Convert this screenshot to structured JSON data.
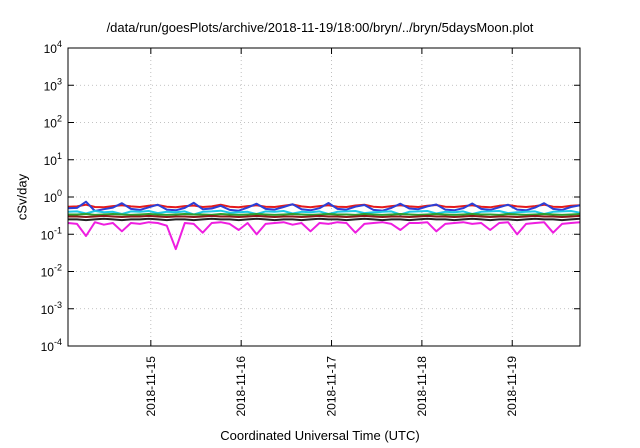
{
  "chart_data": {
    "type": "line",
    "title": "/data/run/goesPlots/archive/2018-11-19/18:00/bryn/../bryn/5daysMoon.plot",
    "xlabel": "Coordinated Universal Time (UTC)",
    "ylabel": "cSv/day",
    "yscale": "log",
    "ylim": [
      0.0001,
      10000
    ],
    "y_ticks": [
      {
        "value": 0.0001,
        "base": "10",
        "exp": "-4"
      },
      {
        "value": 0.001,
        "base": "10",
        "exp": "-3"
      },
      {
        "value": 0.01,
        "base": "10",
        "exp": "-2"
      },
      {
        "value": 0.1,
        "base": "10",
        "exp": "-1"
      },
      {
        "value": 1,
        "base": "10",
        "exp": "0"
      },
      {
        "value": 10,
        "base": "10",
        "exp": "1"
      },
      {
        "value": 100,
        "base": "10",
        "exp": "2"
      },
      {
        "value": 1000,
        "base": "10",
        "exp": "3"
      },
      {
        "value": 10000,
        "base": "10",
        "exp": "4"
      }
    ],
    "xlim": [
      "2018-11-14 02:00",
      "2018-11-19 18:00"
    ],
    "x_ticks": [
      "2018-11-15",
      "2018-11-16",
      "2018-11-17",
      "2018-11-18",
      "2018-11-19"
    ],
    "grid": true,
    "series": [
      {
        "color": "#e41a1c",
        "level": 0.55,
        "values": [
          0.55,
          0.56,
          0.62,
          0.54,
          0.53,
          0.57,
          0.6,
          0.56,
          0.54,
          0.58,
          0.61,
          0.55,
          0.53,
          0.57,
          0.59,
          0.54,
          0.56,
          0.62,
          0.55,
          0.53,
          0.57,
          0.6,
          0.55,
          0.54,
          0.58,
          0.63,
          0.56,
          0.53,
          0.57,
          0.6,
          0.55,
          0.54,
          0.59,
          0.62,
          0.55,
          0.53,
          0.57,
          0.6,
          0.56,
          0.54,
          0.58,
          0.61,
          0.55,
          0.54,
          0.57,
          0.6,
          0.55,
          0.53,
          0.58,
          0.61,
          0.56,
          0.54,
          0.57,
          0.62,
          0.55,
          0.54,
          0.58,
          0.6
        ]
      },
      {
        "color": "#2c3fd6",
        "level": 0.5,
        "values": [
          0.5,
          0.51,
          0.75,
          0.42,
          0.47,
          0.52,
          0.68,
          0.48,
          0.45,
          0.53,
          0.62,
          0.46,
          0.44,
          0.51,
          0.7,
          0.47,
          0.49,
          0.58,
          0.45,
          0.43,
          0.52,
          0.66,
          0.48,
          0.46,
          0.54,
          0.64,
          0.47,
          0.44,
          0.5,
          0.69,
          0.48,
          0.46,
          0.55,
          0.61,
          0.45,
          0.43,
          0.51,
          0.66,
          0.49,
          0.47,
          0.56,
          0.63,
          0.46,
          0.44,
          0.5,
          0.67,
          0.48,
          0.45,
          0.53,
          0.62,
          0.46,
          0.44,
          0.52,
          0.68,
          0.48,
          0.45,
          0.54,
          0.6
        ]
      },
      {
        "color": "#1ec8e8",
        "level": 0.4,
        "values": [
          0.4,
          0.41,
          0.36,
          0.42,
          0.39,
          0.4,
          0.35,
          0.41,
          0.4,
          0.42,
          0.37,
          0.4,
          0.39,
          0.41,
          0.34,
          0.4,
          0.41,
          0.43,
          0.38,
          0.39,
          0.4,
          0.35,
          0.41,
          0.4,
          0.42,
          0.36,
          0.4,
          0.39,
          0.41,
          0.35,
          0.4,
          0.41,
          0.42,
          0.37,
          0.39,
          0.4,
          0.41,
          0.34,
          0.4,
          0.41,
          0.42,
          0.36,
          0.4,
          0.39,
          0.41,
          0.35,
          0.4,
          0.41,
          0.42,
          0.37,
          0.39,
          0.4,
          0.41,
          0.35,
          0.4,
          0.41,
          0.42,
          0.38
        ]
      },
      {
        "color": "#2ca02c",
        "level": 0.34,
        "values": [
          0.34,
          0.34,
          0.35,
          0.33,
          0.34,
          0.35,
          0.34,
          0.33,
          0.34,
          0.35,
          0.34,
          0.33,
          0.34,
          0.35,
          0.34,
          0.34,
          0.33,
          0.35,
          0.34,
          0.33,
          0.34,
          0.35,
          0.34,
          0.33,
          0.34,
          0.35,
          0.34,
          0.33,
          0.34,
          0.35,
          0.34,
          0.34,
          0.33,
          0.35,
          0.34,
          0.33,
          0.34,
          0.35,
          0.34,
          0.33,
          0.34,
          0.35,
          0.34,
          0.33,
          0.34,
          0.35,
          0.34,
          0.34,
          0.33,
          0.35,
          0.34,
          0.33,
          0.34,
          0.35,
          0.34,
          0.33,
          0.34,
          0.35
        ]
      },
      {
        "color": "#8a1a1a",
        "level": 0.3,
        "values": [
          0.3,
          0.3,
          0.29,
          0.3,
          0.31,
          0.3,
          0.29,
          0.3,
          0.3,
          0.31,
          0.3,
          0.29,
          0.3,
          0.3,
          0.29,
          0.3,
          0.31,
          0.3,
          0.3,
          0.29,
          0.3,
          0.31,
          0.3,
          0.29,
          0.3,
          0.3,
          0.29,
          0.3,
          0.31,
          0.3,
          0.3,
          0.29,
          0.3,
          0.31,
          0.3,
          0.29,
          0.3,
          0.3,
          0.29,
          0.3,
          0.31,
          0.3,
          0.3,
          0.29,
          0.3,
          0.31,
          0.3,
          0.29,
          0.3,
          0.3,
          0.29,
          0.3,
          0.31,
          0.3,
          0.3,
          0.29,
          0.3,
          0.31
        ]
      },
      {
        "color": "#222222",
        "level": 0.25,
        "values": [
          0.25,
          0.25,
          0.24,
          0.25,
          0.26,
          0.25,
          0.24,
          0.25,
          0.25,
          0.26,
          0.25,
          0.24,
          0.25,
          0.25,
          0.24,
          0.25,
          0.26,
          0.25,
          0.25,
          0.24,
          0.25,
          0.26,
          0.25,
          0.24,
          0.25,
          0.25,
          0.24,
          0.25,
          0.26,
          0.25,
          0.25,
          0.24,
          0.25,
          0.26,
          0.25,
          0.24,
          0.25,
          0.25,
          0.24,
          0.25,
          0.26,
          0.25,
          0.25,
          0.24,
          0.25,
          0.26,
          0.25,
          0.24,
          0.25,
          0.25,
          0.24,
          0.25,
          0.26,
          0.25,
          0.25,
          0.24,
          0.25,
          0.26
        ]
      },
      {
        "color": "#ee1ee0",
        "level": 0.2,
        "values": [
          0.2,
          0.19,
          0.09,
          0.21,
          0.18,
          0.2,
          0.12,
          0.2,
          0.19,
          0.21,
          0.2,
          0.17,
          0.04,
          0.2,
          0.19,
          0.11,
          0.2,
          0.21,
          0.19,
          0.13,
          0.2,
          0.1,
          0.19,
          0.2,
          0.21,
          0.18,
          0.2,
          0.12,
          0.2,
          0.19,
          0.21,
          0.2,
          0.11,
          0.19,
          0.2,
          0.21,
          0.19,
          0.13,
          0.2,
          0.2,
          0.21,
          0.12,
          0.19,
          0.2,
          0.21,
          0.19,
          0.2,
          0.13,
          0.2,
          0.21,
          0.1,
          0.19,
          0.2,
          0.21,
          0.11,
          0.19,
          0.2,
          0.21
        ]
      }
    ]
  }
}
